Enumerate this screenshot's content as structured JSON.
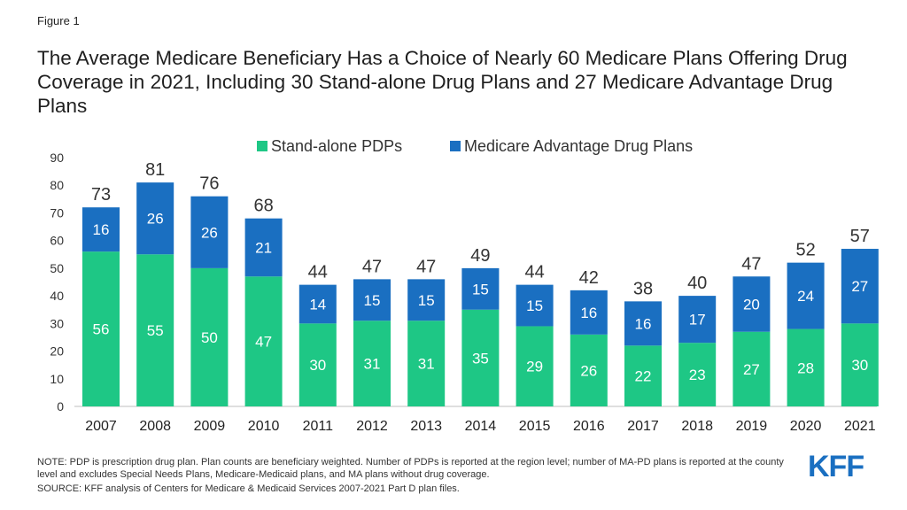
{
  "figure_label": "Figure 1",
  "title": "The Average Medicare Beneficiary Has a Choice of Nearly 60 Medicare Plans Offering Drug Coverage in 2021, Including 30 Stand-alone Drug Plans and 27 Medicare Advantage Drug Plans",
  "note": "NOTE: PDP is prescription drug plan. Plan counts are beneficiary weighted. Number of PDPs is reported at the region level; number of MA-PD plans is reported at the county level and excludes Special Needs Plans, Medicare-Medicaid plans, and MA plans without drug coverage.",
  "source": "SOURCE: KFF analysis of Centers for Medicare & Medicaid Services 2007-2021 Part D plan files.",
  "logo_text": "KFF",
  "colors": {
    "pdp": "#1ec785",
    "mapd": "#1a6fc1",
    "logo": "#1a6fc1"
  },
  "chart_data": {
    "type": "bar",
    "stacked": true,
    "categories": [
      "2007",
      "2008",
      "2009",
      "2010",
      "2011",
      "2012",
      "2013",
      "2014",
      "2015",
      "2016",
      "2017",
      "2018",
      "2019",
      "2020",
      "2021"
    ],
    "series": [
      {
        "name": "Stand-alone PDPs",
        "values": [
          56,
          55,
          50,
          47,
          30,
          31,
          31,
          35,
          29,
          26,
          22,
          23,
          27,
          28,
          30
        ]
      },
      {
        "name": "Medicare Advantage Drug Plans",
        "values": [
          16,
          26,
          26,
          21,
          14,
          15,
          15,
          15,
          15,
          16,
          16,
          17,
          20,
          24,
          27
        ]
      }
    ],
    "totals": [
      73,
      81,
      76,
      68,
      44,
      47,
      47,
      49,
      44,
      42,
      38,
      40,
      47,
      52,
      57
    ],
    "yticks": [
      0,
      10,
      20,
      30,
      40,
      50,
      60,
      70,
      80,
      90
    ],
    "ylim": [
      0,
      90
    ],
    "legend_position": "top",
    "grid": false
  }
}
